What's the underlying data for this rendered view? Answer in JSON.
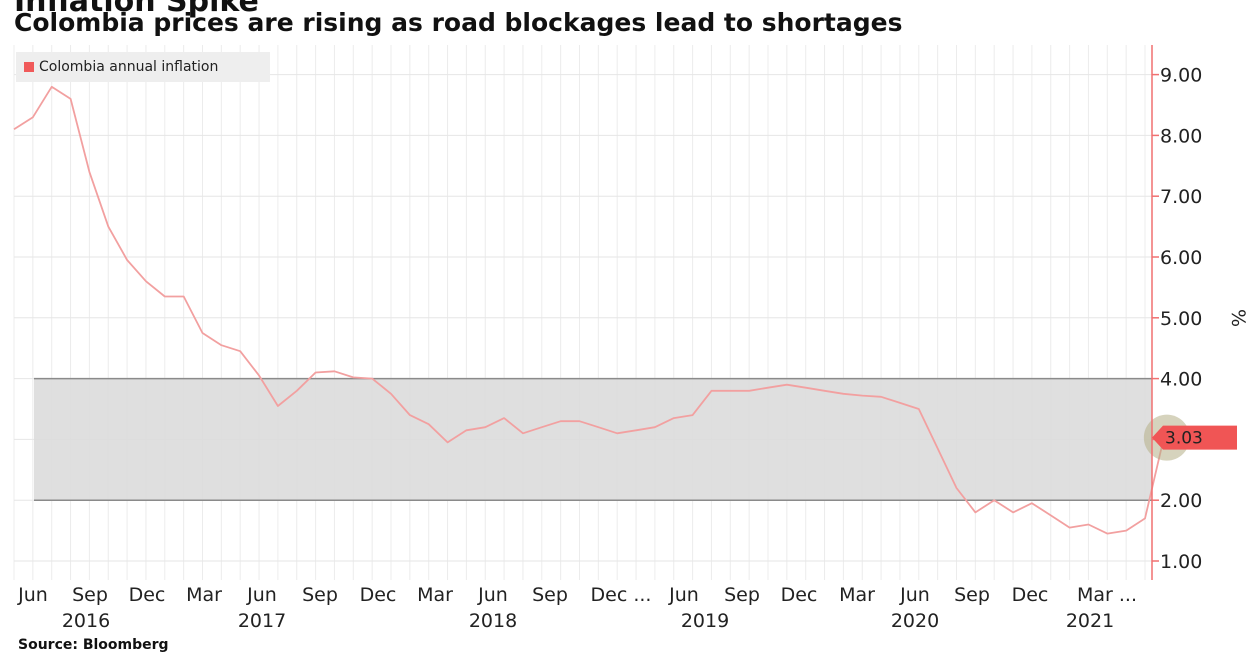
{
  "header": {
    "headline": "Inflation Spike",
    "title": "Colombia prices are rising as road blockages lead to shortages"
  },
  "source": "Source: Bloomberg",
  "chart_data": {
    "type": "line",
    "title": "Colombia prices are rising as road blockages lead to shortages",
    "ylabel": "%",
    "ylim": [
      0.6,
      9.6
    ],
    "yticks": [
      1,
      2,
      3,
      4,
      5,
      6,
      7,
      8,
      9
    ],
    "ytick_labels": [
      "1.00",
      "2.00",
      "3.00",
      "4.00",
      "5.00",
      "6.00",
      "7.00",
      "8.00",
      "9.00"
    ],
    "x_month_labels": [
      "Jun",
      "Sep",
      "Dec",
      "Mar",
      "Jun",
      "Sep",
      "Dec",
      "Mar",
      "Jun",
      "Sep",
      "Dec ...",
      "Jun",
      "Sep",
      "Dec",
      "Mar",
      "Jun",
      "Sep",
      "Dec",
      "Mar ..."
    ],
    "x_year_labels": [
      "2016",
      "2017",
      "2018",
      "2019",
      "2020",
      "2021"
    ],
    "target_band": [
      2,
      4
    ],
    "legend_position": "top-left",
    "grid": true,
    "colors": {
      "series": "#f2a0a0",
      "legend_swatch": "#f05a5a",
      "band": "#dcdcdc",
      "band_edge": "#8a8a8a",
      "axis": "#f07070",
      "callout": "#f05555",
      "highlight": "#b5ae86"
    },
    "series": [
      {
        "name": "Colombia annual inflation",
        "x": [
          "2016-04",
          "2016-05",
          "2016-06",
          "2016-07",
          "2016-08",
          "2016-09",
          "2016-10",
          "2016-11",
          "2016-12",
          "2017-01",
          "2017-02",
          "2017-03",
          "2017-04",
          "2017-05",
          "2017-06",
          "2017-07",
          "2017-08",
          "2017-09",
          "2017-10",
          "2017-11",
          "2017-12",
          "2018-01",
          "2018-02",
          "2018-03",
          "2018-04",
          "2018-05",
          "2018-06",
          "2018-07",
          "2018-08",
          "2018-09",
          "2018-10",
          "2018-11",
          "2018-12",
          "2019-01",
          "2019-02",
          "2019-03",
          "2019-04",
          "2019-05",
          "2019-06",
          "2019-07",
          "2019-08",
          "2019-09",
          "2019-10",
          "2019-11",
          "2019-12",
          "2020-01",
          "2020-02",
          "2020-03",
          "2020-04",
          "2020-05",
          "2020-06",
          "2020-07",
          "2020-08",
          "2020-09",
          "2020-10",
          "2020-11",
          "2020-12",
          "2021-01",
          "2021-02",
          "2021-03",
          "2021-04",
          "2021-05"
        ],
        "values": [
          8.1,
          8.3,
          8.8,
          8.6,
          7.4,
          6.5,
          5.95,
          5.6,
          5.35,
          5.35,
          4.75,
          4.55,
          4.45,
          4.05,
          3.55,
          3.8,
          4.1,
          4.12,
          4.02,
          4.0,
          3.75,
          3.4,
          3.25,
          2.95,
          3.15,
          3.2,
          3.35,
          3.1,
          3.2,
          3.3,
          3.3,
          3.2,
          3.1,
          3.15,
          3.2,
          3.35,
          3.4,
          3.8,
          3.8,
          3.8,
          3.85,
          3.9,
          3.85,
          3.8,
          3.75,
          3.72,
          3.7,
          3.6,
          3.5,
          2.85,
          2.2,
          1.8,
          2.0,
          1.8,
          1.95,
          1.75,
          1.55,
          1.6,
          1.45,
          1.5,
          1.7,
          3.03
        ]
      }
    ],
    "last_value_label": "3.03"
  }
}
